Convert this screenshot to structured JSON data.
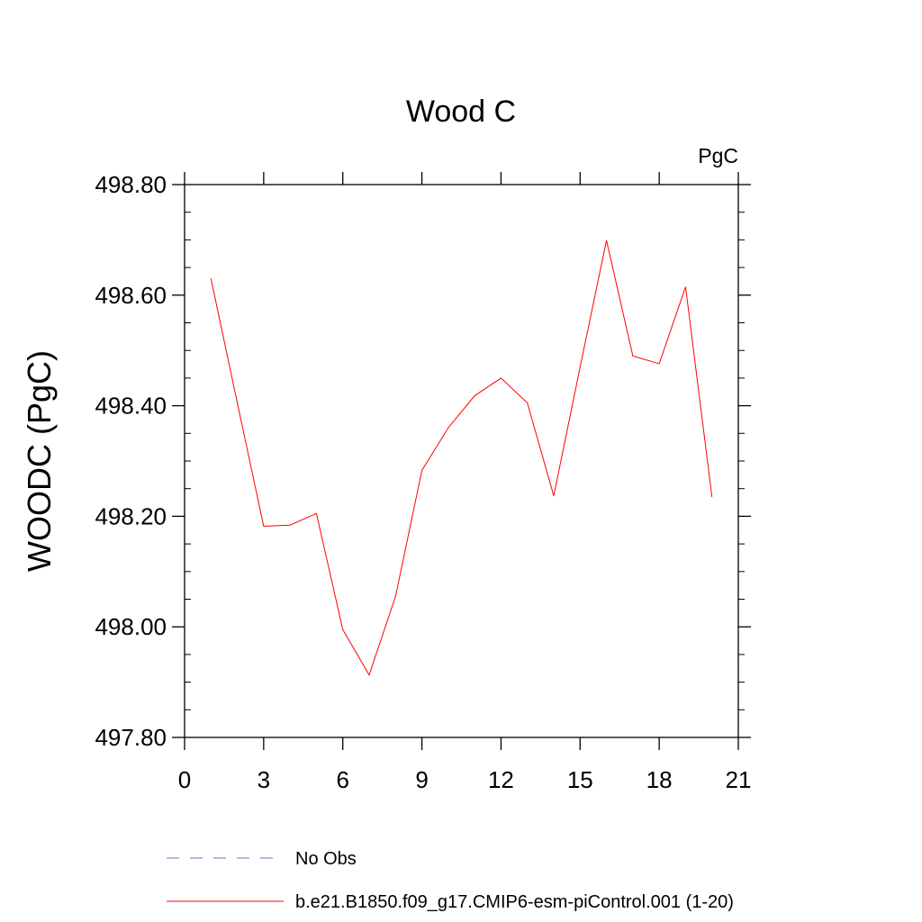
{
  "chart_data": {
    "type": "line",
    "title": "Wood C",
    "units_label": "PgC",
    "ylabel": "WOODC  (PgC)",
    "xlabel": "",
    "xlim": [
      0,
      21
    ],
    "ylim": [
      497.8,
      498.8
    ],
    "x_ticks": [
      "0",
      "3",
      "6",
      "9",
      "12",
      "15",
      "18",
      "21"
    ],
    "x_tick_values": [
      0,
      3,
      6,
      9,
      12,
      15,
      18,
      21
    ],
    "y_ticks": [
      "497.80",
      "498.00",
      "498.20",
      "498.40",
      "498.60",
      "498.80"
    ],
    "y_tick_values": [
      497.8,
      498.0,
      498.2,
      498.4,
      498.6,
      498.8
    ],
    "grid": false,
    "legend_position": "bottom-left",
    "series": [
      {
        "name": "No Obs",
        "color": "#7b68c8",
        "dash": "dashed",
        "x": [],
        "values": []
      },
      {
        "name": "b.e21.B1850.f09_g17.CMIP6-esm-piControl.001 (1-20)",
        "color": "#ff0000",
        "dash": "solid",
        "x": [
          1,
          2,
          3,
          4,
          5,
          6,
          7,
          8,
          9,
          10,
          11,
          12,
          13,
          14,
          15,
          16,
          17,
          18,
          19,
          20
        ],
        "values": [
          498.63,
          498.405,
          498.182,
          498.184,
          498.205,
          497.995,
          497.913,
          498.055,
          498.283,
          498.36,
          498.418,
          498.45,
          498.405,
          498.237,
          498.47,
          498.699,
          498.49,
          498.476,
          498.615,
          498.235
        ]
      }
    ]
  }
}
